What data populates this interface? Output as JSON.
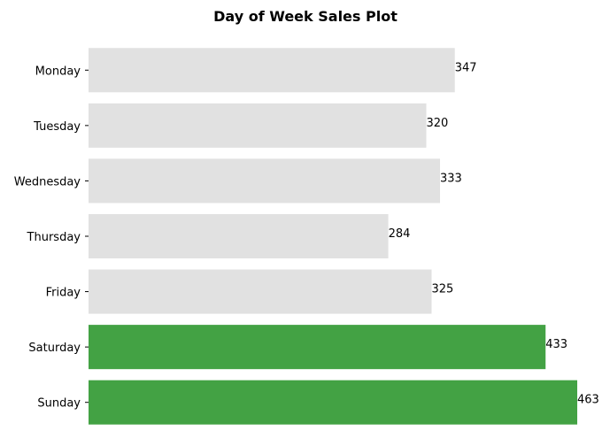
{
  "chart_data": {
    "type": "bar",
    "orientation": "horizontal",
    "title": "Day of Week Sales Plot",
    "xlabel": "",
    "ylabel": "",
    "categories": [
      "Monday",
      "Tuesday",
      "Wednesday",
      "Thursday",
      "Friday",
      "Saturday",
      "Sunday"
    ],
    "values": [
      347,
      320,
      333,
      284,
      325,
      433,
      463
    ],
    "value_labels": [
      "347",
      "320",
      "333",
      "284",
      "325",
      "433",
      "463"
    ],
    "xlim": [
      0,
      463
    ],
    "colors": {
      "default": "#e1e1e1",
      "highlight": "#43a244"
    },
    "highlighted_categories": [
      "Saturday",
      "Sunday"
    ],
    "grid": false,
    "legend": "none"
  }
}
